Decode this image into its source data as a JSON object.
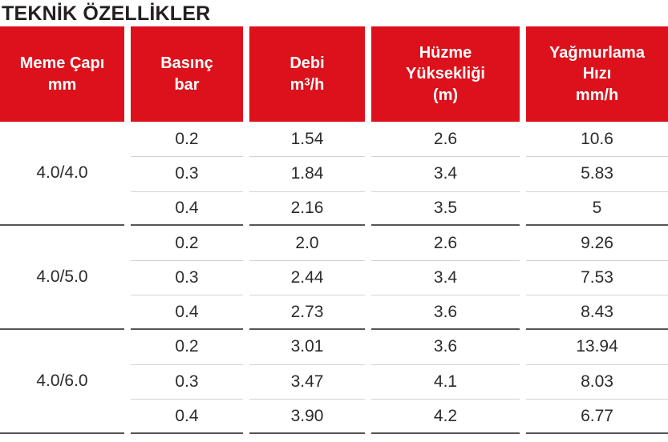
{
  "title": "TEKNİK ÖZELLİKLER",
  "colors": {
    "header-bg": "#dc111b",
    "header-text": "#ffffff",
    "title-text": "#231f20",
    "data-text": "#2c2b2c",
    "divider-light": "#d2d3d5",
    "divider-dark": "#55565a",
    "page-bg": "#ffffff"
  },
  "table": {
    "columns": [
      {
        "lines": [
          "Meme Çapı",
          "mm"
        ]
      },
      {
        "lines": [
          "Basınç",
          "bar"
        ]
      },
      {
        "lines": [
          "Debi"
        ],
        "unit": {
          "base": "m",
          "sup": "3",
          "rest": "/h"
        }
      },
      {
        "lines": [
          "Hüzme",
          "Yüksekliği",
          "(m)"
        ]
      },
      {
        "lines": [
          "Yağmurlama",
          "Hızı",
          "mm/h"
        ]
      }
    ],
    "groups": [
      {
        "nozzle": "4.0/4.0",
        "rows": [
          [
            "0.2",
            "1.54",
            "2.6",
            "10.6"
          ],
          [
            "0.3",
            "1.84",
            "3.4",
            "5.83"
          ],
          [
            "0.4",
            "2.16",
            "3.5",
            "5"
          ]
        ]
      },
      {
        "nozzle": "4.0/5.0",
        "rows": [
          [
            "0.2",
            "2.0",
            "2.6",
            "9.26"
          ],
          [
            "0.3",
            "2.44",
            "3.4",
            "7.53"
          ],
          [
            "0.4",
            "2.73",
            "3.6",
            "8.43"
          ]
        ]
      },
      {
        "nozzle": "4.0/6.0",
        "rows": [
          [
            "0.2",
            "3.01",
            "3.6",
            "13.94"
          ],
          [
            "0.3",
            "3.47",
            "4.1",
            "8.03"
          ],
          [
            "0.4",
            "3.90",
            "4.2",
            "6.77"
          ]
        ]
      }
    ]
  }
}
